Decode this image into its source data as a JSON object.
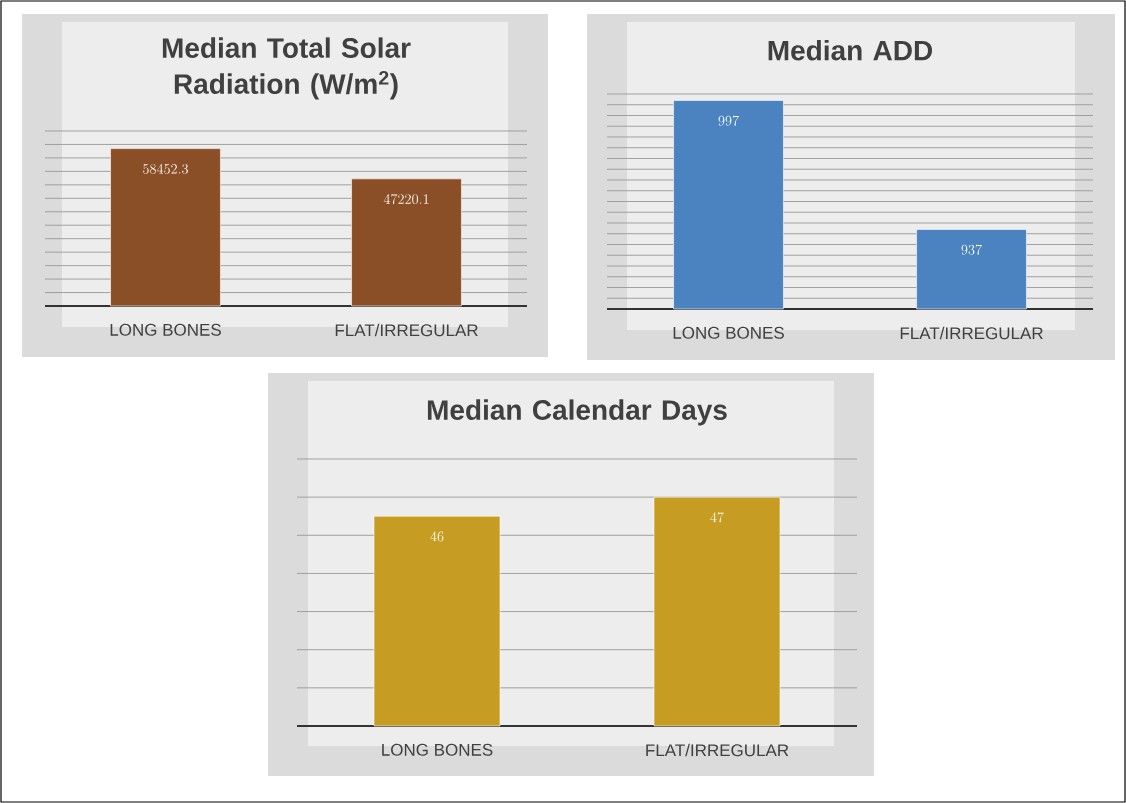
{
  "chart_data": [
    {
      "type": "bar",
      "title": "Median Total Solar Radiation (W/m$^{2}$)",
      "categories": [
        "LONG BONES",
        "FLAT/IRREGULAR"
      ],
      "values": [
        58452.3,
        47220.1
      ],
      "color": "#8b4f27",
      "ylim": [
        0,
        65000
      ],
      "yticks": [
        {
          "value": 0,
          "label": null
        },
        {
          "value": 5000,
          "label": null
        },
        {
          "value": 10000,
          "label": null
        },
        {
          "value": 15000,
          "label": null
        },
        {
          "value": 20000,
          "label": null
        },
        {
          "value": 25000,
          "label": null
        },
        {
          "value": 30000,
          "label": null
        },
        {
          "value": 35000,
          "label": null
        },
        {
          "value": 40000,
          "label": null
        },
        {
          "value": 45000,
          "label": null
        },
        {
          "value": 50000,
          "label": null
        },
        {
          "value": 55000,
          "label": null
        },
        {
          "value": 60000,
          "label": null
        },
        {
          "value": 65000,
          "label": null
        }
      ],
      "tick_labels": "x",
      "grid": "y",
      "data_labels": true
    },
    {
      "type": "bar",
      "title": "Median ADD",
      "categories": [
        "LONG BONES",
        "FLAT/IRREGULAR"
      ],
      "values": [
        997,
        937
      ],
      "color": "#4a83bf",
      "ylim": [
        900,
        1000
      ],
      "yticks": [
        {
          "value": 900,
          "label": null
        },
        {
          "value": 905,
          "label": null
        },
        {
          "value": 910,
          "label": null
        },
        {
          "value": 915,
          "label": null
        },
        {
          "value": 920,
          "label": null
        },
        {
          "value": 925,
          "label": null
        },
        {
          "value": 930,
          "label": null
        },
        {
          "value": 935,
          "label": null
        },
        {
          "value": 940,
          "label": null
        },
        {
          "value": 945,
          "label": null
        },
        {
          "value": 950,
          "label": null
        },
        {
          "value": 955,
          "label": null
        },
        {
          "value": 960,
          "label": null
        },
        {
          "value": 965,
          "label": null
        },
        {
          "value": 970,
          "label": null
        },
        {
          "value": 975,
          "label": null
        },
        {
          "value": 980,
          "label": null
        },
        {
          "value": 985,
          "label": null
        },
        {
          "value": 990,
          "label": null
        },
        {
          "value": 995,
          "label": null
        },
        {
          "value": 1000,
          "label": null
        }
      ],
      "tick_labels": "x",
      "grid": "y",
      "data_labels": true
    },
    {
      "type": "bar",
      "title": "Median Calendar Days",
      "categories": [
        "LONG BONES",
        "FLAT/IRREGULAR"
      ],
      "values": [
        46,
        47
      ],
      "color": "#c69c23",
      "ylim": [
        35,
        49
      ],
      "yticks": [
        {
          "value": 35,
          "label": null
        },
        {
          "value": 37,
          "label": null
        },
        {
          "value": 39,
          "label": null
        },
        {
          "value": 41,
          "label": null
        },
        {
          "value": 43,
          "label": null
        },
        {
          "value": 45,
          "label": null
        },
        {
          "value": 47,
          "label": null
        },
        {
          "value": 49,
          "label": null
        }
      ],
      "tick_labels": "x",
      "grid": "y",
      "data_labels": true
    }
  ]
}
